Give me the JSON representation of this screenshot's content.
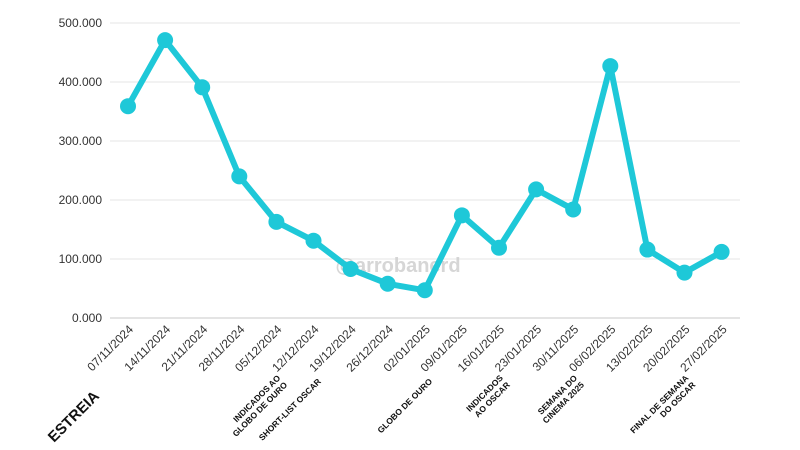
{
  "chart_data": {
    "type": "line",
    "categories": [
      "07/11/2024",
      "14/11/2024",
      "21/11/2024",
      "28/11/2024",
      "05/12/2024",
      "12/12/2024",
      "19/12/2024",
      "26/12/2024",
      "02/01/2025",
      "09/01/2025",
      "16/01/2025",
      "23/01/2025",
      "30/11/2025",
      "06/02/2025",
      "13/02/2025",
      "20/02/2025",
      "27/02/2025"
    ],
    "series": [
      {
        "values": [
          359000,
          471000,
          391000,
          240000,
          163000,
          131000,
          83000,
          58000,
          47000,
          174000,
          119000,
          218000,
          184000,
          427000,
          116000,
          77000,
          112000
        ]
      }
    ],
    "ylim": [
      0,
      500000
    ],
    "yticks": [
      0,
      100000,
      200000,
      300000,
      400000,
      500000
    ],
    "ytick_labels": [
      "0.000",
      "100.000",
      "200.000",
      "300.000",
      "400.000",
      "500.000"
    ],
    "grid": true,
    "line_color": "#1ec8d8",
    "annotations": [
      {
        "category_index": 0,
        "lines": [
          "ESTREIA"
        ]
      },
      {
        "category_index": 4,
        "lines": [
          "INDICADOS AO",
          "GLOBO DE OURO"
        ]
      },
      {
        "category_index": 5,
        "lines": [
          "SHORT-LIST OSCAR"
        ]
      },
      {
        "category_index": 8,
        "lines": [
          "GLOBO DE OURO"
        ]
      },
      {
        "category_index": 10,
        "lines": [
          "INDICADOS",
          "AO OSCAR"
        ]
      },
      {
        "category_index": 12,
        "lines": [
          "SEMANA DO",
          "CINEMA 2025"
        ]
      },
      {
        "category_index": 15,
        "lines": [
          "FINAL DE SEMANA",
          "DO OSCAR"
        ]
      }
    ],
    "watermark": "@arrobanerd"
  }
}
